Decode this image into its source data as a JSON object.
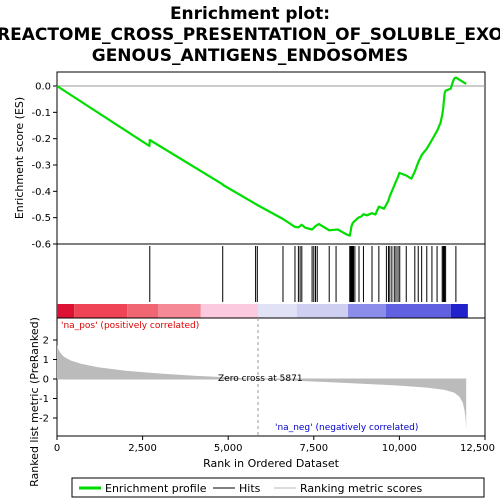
{
  "chart_data": {
    "type": "line",
    "title_lines": [
      "Enrichment plot:",
      "REACTOME_CROSS_PRESENTATION_OF_SOLUBLE_EXO",
      "GENOUS_ANTIGENS_ENDOSOMES"
    ],
    "enrichment": {
      "ylabel": "Enrichment score (ES)",
      "ylim": [
        -0.6,
        0.05
      ],
      "yticks": [
        "0.0",
        "-0.1",
        "-0.2",
        "-0.3",
        "-0.4",
        "-0.5",
        "-0.6"
      ],
      "ytick_values": [
        0.0,
        -0.1,
        -0.2,
        -0.3,
        -0.4,
        -0.5,
        -0.6
      ],
      "series_color": "#00dd00",
      "points": [
        [
          0,
          0.0
        ],
        [
          2700,
          -0.228
        ],
        [
          2710,
          -0.205
        ],
        [
          4830,
          -0.373
        ],
        [
          4850,
          -0.376
        ],
        [
          5800,
          -0.448
        ],
        [
          5850,
          -0.452
        ],
        [
          6600,
          -0.505
        ],
        [
          6950,
          -0.535
        ],
        [
          7050,
          -0.537
        ],
        [
          7150,
          -0.527
        ],
        [
          7250,
          -0.538
        ],
        [
          7450,
          -0.545
        ],
        [
          7550,
          -0.532
        ],
        [
          7650,
          -0.524
        ],
        [
          7950,
          -0.548
        ],
        [
          8100,
          -0.546
        ],
        [
          8200,
          -0.545
        ],
        [
          8450,
          -0.563
        ],
        [
          8550,
          -0.568
        ],
        [
          8580,
          -0.548
        ],
        [
          8600,
          -0.532
        ],
        [
          8640,
          -0.52
        ],
        [
          8700,
          -0.512
        ],
        [
          8800,
          -0.5
        ],
        [
          8880,
          -0.496
        ],
        [
          8950,
          -0.487
        ],
        [
          9050,
          -0.491
        ],
        [
          9200,
          -0.483
        ],
        [
          9300,
          -0.488
        ],
        [
          9400,
          -0.458
        ],
        [
          9550,
          -0.466
        ],
        [
          9620,
          -0.45
        ],
        [
          9680,
          -0.435
        ],
        [
          9720,
          -0.418
        ],
        [
          9780,
          -0.399
        ],
        [
          9850,
          -0.378
        ],
        [
          9900,
          -0.362
        ],
        [
          9950,
          -0.348
        ],
        [
          10000,
          -0.33
        ],
        [
          10200,
          -0.34
        ],
        [
          10350,
          -0.352
        ],
        [
          10450,
          -0.325
        ],
        [
          10550,
          -0.29
        ],
        [
          10650,
          -0.262
        ],
        [
          10800,
          -0.238
        ],
        [
          10950,
          -0.205
        ],
        [
          11100,
          -0.17
        ],
        [
          11200,
          -0.14
        ],
        [
          11250,
          -0.11
        ],
        [
          11280,
          -0.085
        ],
        [
          11300,
          -0.055
        ],
        [
          11320,
          -0.028
        ],
        [
          11350,
          -0.018
        ],
        [
          11500,
          -0.01
        ],
        [
          11550,
          0.012
        ],
        [
          11600,
          0.028
        ],
        [
          11650,
          0.032
        ],
        [
          11950,
          0.008
        ]
      ]
    },
    "hits": {
      "positions": [
        2710,
        4840,
        5800,
        5850,
        6600,
        6950,
        7050,
        7100,
        7150,
        7450,
        7500,
        7550,
        7600,
        7950,
        8150,
        8550,
        8570,
        8590,
        8610,
        8630,
        8660,
        8700,
        8820,
        8950,
        9200,
        9400,
        9620,
        9680,
        9720,
        9780,
        9850,
        9900,
        9960,
        10010,
        10200,
        10450,
        10550,
        10650,
        10800,
        10950,
        11100,
        11250,
        11280,
        11300,
        11320,
        11350,
        11650
      ]
    },
    "color_bar": {
      "segments": [
        {
          "from": 0,
          "to": 500,
          "color": "#dd1133"
        },
        {
          "from": 500,
          "to": 2050,
          "color": "#ee4455"
        },
        {
          "from": 2050,
          "to": 2950,
          "color": "#f06673"
        },
        {
          "from": 2950,
          "to": 4200,
          "color": "#f58a96"
        },
        {
          "from": 4200,
          "to": 5871,
          "color": "#fbcadf"
        },
        {
          "from": 5871,
          "to": 7000,
          "color": "#e2e2f6"
        },
        {
          "from": 7000,
          "to": 8500,
          "color": "#cfcff2"
        },
        {
          "from": 8500,
          "to": 9600,
          "color": "#8c8cea"
        },
        {
          "from": 9600,
          "to": 11500,
          "color": "#6060e0"
        },
        {
          "from": 11500,
          "to": 12000,
          "color": "#2222cc"
        }
      ]
    },
    "ranked_metric": {
      "ylabel": "Ranked list metric (PreRanked)",
      "xlabel": "Rank in Ordered Dataset",
      "ylim": [
        -2.6,
        2.0
      ],
      "yticks": [
        "2",
        "1",
        "0",
        "-1",
        "-2"
      ],
      "ytick_values": [
        2,
        1,
        0,
        -1,
        -2
      ],
      "xlim": [
        0,
        12500
      ],
      "xticks": [
        "0",
        "2,500",
        "5,000",
        "7,500",
        "10,000",
        "12,500"
      ],
      "xtick_values": [
        0,
        2500,
        5000,
        7500,
        10000,
        12500
      ],
      "fill_color": "#bbbbbb",
      "points": [
        [
          0,
          1.75
        ],
        [
          30,
          1.55
        ],
        [
          100,
          1.35
        ],
        [
          200,
          1.15
        ],
        [
          400,
          0.95
        ],
        [
          700,
          0.78
        ],
        [
          1200,
          0.6
        ],
        [
          2000,
          0.42
        ],
        [
          3000,
          0.28
        ],
        [
          4000,
          0.17
        ],
        [
          5000,
          0.08
        ],
        [
          5871,
          0.0
        ],
        [
          7000,
          -0.09
        ],
        [
          8000,
          -0.17
        ],
        [
          9000,
          -0.25
        ],
        [
          10000,
          -0.34
        ],
        [
          10800,
          -0.44
        ],
        [
          11300,
          -0.55
        ],
        [
          11600,
          -0.7
        ],
        [
          11750,
          -0.9
        ],
        [
          11850,
          -1.2
        ],
        [
          11900,
          -1.6
        ],
        [
          11930,
          -2.0
        ],
        [
          11950,
          -2.55
        ]
      ],
      "zero_cross_label": "Zero cross at 5871",
      "zero_cross_rank": 5871,
      "pos_label": "'na_pos' (positively correlated)",
      "neg_label": "'na_neg' (negatively correlated)",
      "pos_color": "#dd0000",
      "neg_color": "#0000cc"
    },
    "x_max_rank": 12500,
    "legend": {
      "items": [
        {
          "label": "Enrichment profile",
          "color": "#00dd00",
          "kind": "thick-line"
        },
        {
          "label": "Hits",
          "color": "#000000",
          "kind": "line"
        },
        {
          "label": "Ranking metric scores",
          "color": "#bbbbbb",
          "kind": "line"
        }
      ]
    }
  }
}
